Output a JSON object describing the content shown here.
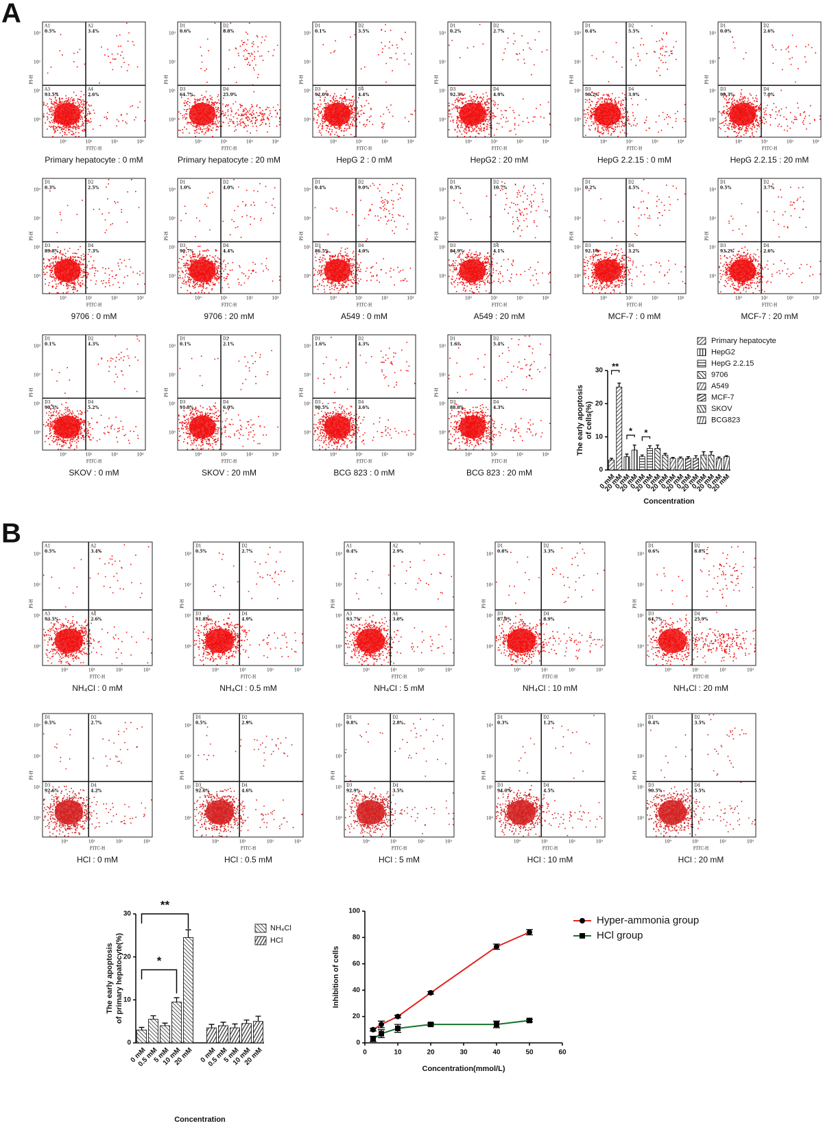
{
  "flow_axes": {
    "x_label": "FITC-H",
    "y_label": "PI-H",
    "ticks": [
      "10⁰",
      "10¹",
      "10²",
      "10³"
    ]
  },
  "panel_A": {
    "label": "A",
    "flow_plots": [
      {
        "caption": "Primary hepatocyte : 0 mM",
        "quadrants": [
          [
            "A1",
            "0.5%"
          ],
          [
            "A2",
            "3.4%"
          ],
          [
            "A3",
            "93.5%"
          ],
          [
            "A4",
            "2.6%"
          ]
        ]
      },
      {
        "caption": "Primary hepatocyte : 20 mM",
        "quadrants": [
          [
            "D1",
            "0.6%"
          ],
          [
            "D2",
            "8.8%"
          ],
          [
            "D3",
            "64.7%"
          ],
          [
            "D4",
            "25.9%"
          ]
        ]
      },
      {
        "caption": "HepG 2 : 0 mM",
        "quadrants": [
          [
            "D1",
            "0.1%"
          ],
          [
            "D2",
            "3.5%"
          ],
          [
            "D3",
            "92.0%"
          ],
          [
            "D4",
            "4.4%"
          ]
        ]
      },
      {
        "caption": "HepG2 : 20 mM",
        "quadrants": [
          [
            "D1",
            "0.2%"
          ],
          [
            "D2",
            "2.7%"
          ],
          [
            "D3",
            "92.3%"
          ],
          [
            "D4",
            "4.9%"
          ]
        ]
      },
      {
        "caption": "HepG 2.2.15 : 0 mM",
        "quadrants": [
          [
            "D1",
            "0.4%"
          ],
          [
            "D2",
            "5.5%"
          ],
          [
            "D3",
            "90.2%"
          ],
          [
            "D4",
            "3.9%"
          ]
        ]
      },
      {
        "caption": "HepG 2.2.15 : 20 mM",
        "quadrants": [
          [
            "D1",
            "0.0%"
          ],
          [
            "D2",
            "2.6%"
          ],
          [
            "D3",
            "90.3%"
          ],
          [
            "D4",
            "7.0%"
          ]
        ]
      },
      {
        "caption": "9706 : 0 mM",
        "quadrants": [
          [
            "D1",
            "0.3%"
          ],
          [
            "D2",
            "2.5%"
          ],
          [
            "D3",
            "89.8%"
          ],
          [
            "D4",
            "7.3%"
          ]
        ]
      },
      {
        "caption": "9706 : 20 mM",
        "quadrants": [
          [
            "D1",
            "1.0%"
          ],
          [
            "D2",
            "4.0%"
          ],
          [
            "D3",
            "90.7%"
          ],
          [
            "D4",
            "4.4%"
          ]
        ]
      },
      {
        "caption": "A549 : 0 mM",
        "quadrants": [
          [
            "D1",
            "0.4%"
          ],
          [
            "D2",
            "9.0%"
          ],
          [
            "D3",
            "86.5%"
          ],
          [
            "D4",
            "4.0%"
          ]
        ]
      },
      {
        "caption": "A549 : 20 mM",
        "quadrants": [
          [
            "D1",
            "0.3%"
          ],
          [
            "D2",
            "10.7%"
          ],
          [
            "D3",
            "84.9%"
          ],
          [
            "D4",
            "4.1%"
          ]
        ]
      },
      {
        "caption": "MCF-7 : 0 mM",
        "quadrants": [
          [
            "D1",
            "0.2%"
          ],
          [
            "D2",
            "4.5%"
          ],
          [
            "D3",
            "92.1%"
          ],
          [
            "D4",
            "3.2%"
          ]
        ]
      },
      {
        "caption": "MCF-7 : 20 mM",
        "quadrants": [
          [
            "D1",
            "0.5%"
          ],
          [
            "D2",
            "3.7%"
          ],
          [
            "D3",
            "93.2%"
          ],
          [
            "D4",
            "2.6%"
          ]
        ]
      },
      {
        "caption": "SKOV : 0 mM",
        "quadrants": [
          [
            "D1",
            "0.1%"
          ],
          [
            "D2",
            "4.3%"
          ],
          [
            "D3",
            "90.5%"
          ],
          [
            "D4",
            "5.2%"
          ]
        ]
      },
      {
        "caption": "SKOV : 20 mM",
        "quadrants": [
          [
            "D1",
            "0.1%"
          ],
          [
            "D2",
            "2.1%"
          ],
          [
            "D3",
            "91.8%"
          ],
          [
            "D4",
            "6.0%"
          ]
        ]
      },
      {
        "caption": "BCG 823 : 0 mM",
        "quadrants": [
          [
            "D1",
            "1.6%"
          ],
          [
            "D2",
            "4.3%"
          ],
          [
            "D3",
            "90.5%"
          ],
          [
            "D4",
            "3.6%"
          ]
        ]
      },
      {
        "caption": "BCG 823 : 20 mM",
        "quadrants": [
          [
            "D1",
            "1.6%"
          ],
          [
            "D2",
            "5.4%"
          ],
          [
            "D3",
            "88.8%"
          ],
          [
            "D4",
            "4.3%"
          ]
        ]
      }
    ],
    "chart_data": {
      "type": "bar",
      "y_label": [
        "The early apoptosis",
        "of cells(%)"
      ],
      "x_label": "Concentration",
      "categories": [
        "0 mM",
        "20 mM"
      ],
      "ylim": [
        0,
        30
      ],
      "yticks": [
        0,
        10,
        20,
        30
      ],
      "annotations": [
        "**",
        "*",
        "*"
      ],
      "series": [
        {
          "name": "Primary hepatocyte",
          "color": "#444444",
          "values": [
            3,
            25
          ],
          "errors": [
            0.5,
            1.2
          ]
        },
        {
          "name": "HepG2",
          "color": "#222222",
          "values": [
            4,
            6
          ],
          "errors": [
            0.8,
            1.5
          ]
        },
        {
          "name": "HepG 2.2.15",
          "color": "#555555",
          "values": [
            4,
            6.5
          ],
          "errors": [
            0.5,
            0.8
          ]
        },
        {
          "name": "9706",
          "color": "#333333",
          "values": [
            6.5,
            4.5
          ],
          "errors": [
            1,
            0.5
          ]
        },
        {
          "name": "A549",
          "color": "#666666",
          "values": [
            3.5,
            3.5
          ],
          "errors": [
            0.3,
            0.4
          ]
        },
        {
          "name": "MCF-7",
          "color": "#444444",
          "values": [
            3.5,
            3.5
          ],
          "errors": [
            0.5,
            0.8
          ]
        },
        {
          "name": "SKOV",
          "color": "#333333",
          "values": [
            4.5,
            4.5
          ],
          "errors": [
            1,
            1
          ]
        },
        {
          "name": "BCG823",
          "color": "#555555",
          "values": [
            3.5,
            4
          ],
          "errors": [
            0.4,
            0.3
          ]
        }
      ]
    }
  },
  "panel_B": {
    "label": "B",
    "flow_plots": [
      {
        "caption": "NH₄Cl : 0 mM",
        "quadrants": [
          [
            "A1",
            "0.5%"
          ],
          [
            "A2",
            "3.4%"
          ],
          [
            "A3",
            "93.5%"
          ],
          [
            "A4",
            "2.6%"
          ]
        ]
      },
      {
        "caption": "NH₄Cl : 0.5 mM",
        "quadrants": [
          [
            "D1",
            "0.5%"
          ],
          [
            "D2",
            "2.7%"
          ],
          [
            "D3",
            "91.8%"
          ],
          [
            "D4",
            "4.9%"
          ]
        ]
      },
      {
        "caption": "NH₄Cl : 5 mM",
        "quadrants": [
          [
            "A1",
            "0.4%"
          ],
          [
            "A2",
            "2.9%"
          ],
          [
            "A3",
            "93.7%"
          ],
          [
            "A4",
            "3.0%"
          ]
        ]
      },
      {
        "caption": "NH₄Cl : 10 mM",
        "quadrants": [
          [
            "D1",
            "0.8%"
          ],
          [
            "D2",
            "3.3%"
          ],
          [
            "D3",
            "87.0%"
          ],
          [
            "D4",
            "8.9%"
          ]
        ]
      },
      {
        "caption": "NH₄Cl : 20 mM",
        "quadrants": [
          [
            "D1",
            "0.6%"
          ],
          [
            "D2",
            "8.8%"
          ],
          [
            "D3",
            "64.7%"
          ],
          [
            "D4",
            "25.9%"
          ]
        ]
      },
      {
        "caption": "HCl : 0 mM",
        "quadrants": [
          [
            "D1",
            "0.5%"
          ],
          [
            "D2",
            "2.7%"
          ],
          [
            "D3",
            "92.6%"
          ],
          [
            "D4",
            "4.2%"
          ]
        ]
      },
      {
        "caption": "HCl : 0.5 mM",
        "quadrants": [
          [
            "D1",
            "0.5%"
          ],
          [
            "D2",
            "2.9%"
          ],
          [
            "D3",
            "92.0%"
          ],
          [
            "D4",
            "4.6%"
          ]
        ]
      },
      {
        "caption": "HCl : 5 mM",
        "quadrants": [
          [
            "D1",
            "0.8%"
          ],
          [
            "D2",
            "2.8%"
          ],
          [
            "D3",
            "92.9%"
          ],
          [
            "D4",
            "3.5%"
          ]
        ]
      },
      {
        "caption": "HCl : 10 mM",
        "quadrants": [
          [
            "D1",
            "0.3%"
          ],
          [
            "D2",
            "1.2%"
          ],
          [
            "D3",
            "94.0%"
          ],
          [
            "D4",
            "4.5%"
          ]
        ]
      },
      {
        "caption": "HCl : 20 mM",
        "quadrants": [
          [
            "D1",
            "0.4%"
          ],
          [
            "D2",
            "3.5%"
          ],
          [
            "D3",
            "90.5%"
          ],
          [
            "D4",
            "5.5%"
          ]
        ]
      }
    ],
    "charts": [
      {
        "type": "bar",
        "y_label": [
          "The early apoptosis",
          "of primary hepatocyte(%)"
        ],
        "x_label": "Concentration",
        "categories": [
          "0 mM",
          "0.5 mM",
          "5 mM",
          "10 mM",
          "20 mM"
        ],
        "ylim": [
          0,
          30
        ],
        "yticks": [
          0,
          10,
          20,
          30
        ],
        "annotations": [
          "**",
          "*"
        ],
        "series": [
          {
            "name": "NH₄Cl",
            "color": "#555555",
            "values": [
              3,
              5.5,
              4,
              9.5,
              24.5
            ],
            "errors": [
              0.6,
              0.8,
              0.6,
              1,
              1.8
            ]
          },
          {
            "name": "HCl",
            "color": "#333333",
            "values": [
              3.5,
              4,
              3.5,
              4.5,
              5
            ],
            "errors": [
              0.8,
              0.8,
              0.9,
              0.8,
              1.2
            ]
          }
        ]
      },
      {
        "type": "line",
        "y_label": "Inhibition of cells",
        "x_label": "Concentration(mmol/L)",
        "x": [
          2.5,
          5,
          10,
          20,
          40,
          50
        ],
        "xlim": [
          0,
          60
        ],
        "xticks": [
          0,
          10,
          20,
          30,
          40,
          50,
          60
        ],
        "ylim": [
          0,
          100
        ],
        "yticks": [
          0,
          20,
          40,
          60,
          80,
          100
        ],
        "series": [
          {
            "name": "Hyper-ammonia group",
            "color": "#e8211c",
            "values": [
              10,
              14,
              20,
              38,
              73,
              84
            ],
            "errors": [
              1,
              2.5,
              1,
              1,
              2,
              2
            ]
          },
          {
            "name": "HCl group",
            "color": "#17732a",
            "values": [
              3,
              7,
              11,
              14,
              14,
              17
            ],
            "errors": [
              2,
              3,
              3,
              1,
              2.5,
              1
            ]
          }
        ]
      }
    ]
  }
}
